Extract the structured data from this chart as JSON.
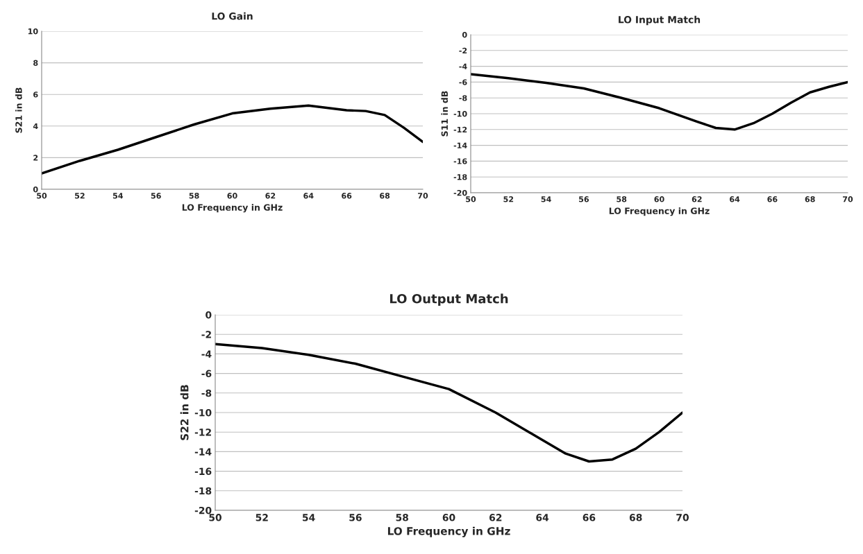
{
  "chart_data": [
    {
      "type": "line",
      "title": "LO Gain",
      "xlabel": "LO Frequency in GHz",
      "ylabel": "S21 in dB",
      "xlim": [
        50,
        70
      ],
      "xticks": [
        50,
        52,
        54,
        56,
        58,
        60,
        62,
        64,
        66,
        68,
        70
      ],
      "ylim": [
        0,
        10
      ],
      "yticks": [
        0,
        2,
        4,
        6,
        8,
        10
      ],
      "grid": "y",
      "series": [
        {
          "color": "#000000",
          "x": [
            50,
            52,
            54,
            56,
            58,
            60,
            62,
            64,
            66,
            67,
            68,
            69,
            70
          ],
          "values": [
            1.0,
            1.8,
            2.5,
            3.3,
            4.1,
            4.8,
            5.1,
            5.3,
            5.0,
            4.95,
            4.7,
            3.9,
            3.0
          ]
        }
      ]
    },
    {
      "type": "line",
      "title": "LO Input Match",
      "xlabel": "LO Frequency in GHz",
      "ylabel": "S11 in dB",
      "xlim": [
        50,
        70
      ],
      "xticks": [
        50,
        52,
        54,
        56,
        58,
        60,
        62,
        64,
        66,
        68,
        70
      ],
      "ylim": [
        -20,
        0
      ],
      "yticks": [
        -20,
        -18,
        -16,
        -14,
        -12,
        -10,
        -8,
        -6,
        -4,
        -2,
        0
      ],
      "grid": "y",
      "series": [
        {
          "color": "#000000",
          "x": [
            50,
            52,
            54,
            56,
            58,
            60,
            62,
            63,
            64,
            65,
            66,
            67,
            68,
            69,
            70
          ],
          "values": [
            -5.0,
            -5.5,
            -6.1,
            -6.8,
            -8.0,
            -9.3,
            -11.0,
            -11.8,
            -12.0,
            -11.2,
            -10.0,
            -8.6,
            -7.3,
            -6.6,
            -6.0
          ]
        }
      ]
    },
    {
      "type": "line",
      "title": "LO Output Match",
      "xlabel": "LO Frequency in GHz",
      "ylabel": "S22 in dB",
      "xlim": [
        50,
        70
      ],
      "xticks": [
        50,
        52,
        54,
        56,
        58,
        60,
        62,
        64,
        66,
        68,
        70
      ],
      "ylim": [
        -20,
        0
      ],
      "yticks": [
        -20,
        -18,
        -16,
        -14,
        -12,
        -10,
        -8,
        -6,
        -4,
        -2,
        0
      ],
      "grid": "y",
      "series": [
        {
          "color": "#000000",
          "x": [
            50,
            52,
            54,
            56,
            58,
            60,
            62,
            64,
            65,
            66,
            67,
            68,
            69,
            70
          ],
          "values": [
            -3.0,
            -3.4,
            -4.1,
            -5.0,
            -6.3,
            -7.6,
            -10.0,
            -12.8,
            -14.2,
            -15.0,
            -14.8,
            -13.7,
            -12.0,
            -10.0
          ]
        }
      ]
    }
  ]
}
